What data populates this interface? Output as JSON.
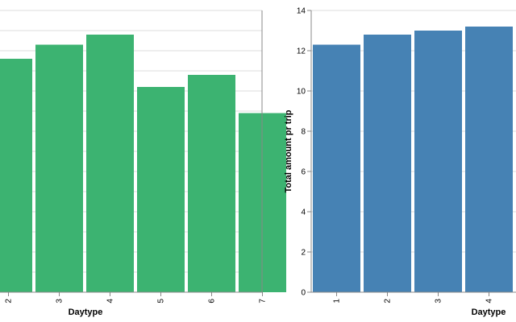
{
  "chart_data": [
    {
      "type": "bar",
      "color": "#3cb371",
      "categories": [
        "2",
        "3",
        "4",
        "5",
        "6",
        "7"
      ],
      "values": [
        11.6,
        12.3,
        12.8,
        10.2,
        10.8,
        8.9
      ],
      "xlabel": "Daytype",
      "ylabel": "",
      "ylim": [
        0,
        14
      ],
      "grid": true
    },
    {
      "type": "bar",
      "color": "#4682b4",
      "categories": [
        "1",
        "2",
        "3",
        "4"
      ],
      "values": [
        12.3,
        12.8,
        13.0,
        13.2
      ],
      "xlabel": "Daytype",
      "ylabel": "Total amount pr trip",
      "ylim": [
        0,
        14
      ],
      "yticks": [
        0,
        2,
        4,
        6,
        8,
        10,
        12,
        14
      ],
      "grid": true
    }
  ]
}
